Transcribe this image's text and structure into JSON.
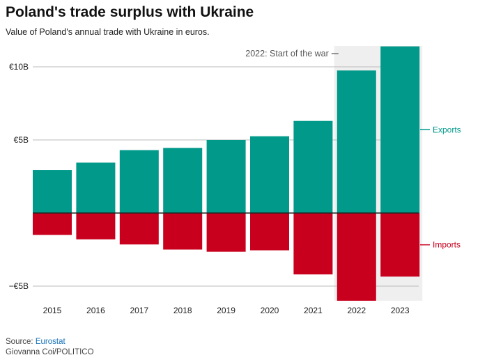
{
  "title": "Poland's trade surplus with Ukraine",
  "subtitle": "Value of Poland's annual trade with Ukraine in euros.",
  "footer": {
    "source_prefix": "Source: ",
    "source_name": "Eurostat",
    "credit": "Giovanna Coi/POLITICO"
  },
  "colors": {
    "exports": "#00998a",
    "imports": "#c8001e",
    "war_shade": "#efefef",
    "gridline": "#bbbbbb",
    "zero_line": "#222222",
    "source_link": "#1a73b8"
  },
  "chart_data": {
    "type": "bar",
    "title": "Poland's trade surplus with Ukraine",
    "subtitle": "Value of Poland's annual trade with Ukraine in euros.",
    "xlabel": "",
    "ylabel": "",
    "categories": [
      "2015",
      "2016",
      "2017",
      "2018",
      "2019",
      "2020",
      "2021",
      "2022",
      "2023"
    ],
    "series": [
      {
        "name": "Exports",
        "values": [
          2.95,
          3.45,
          4.3,
          4.45,
          5.0,
          5.25,
          6.3,
          9.75,
          11.4
        ]
      },
      {
        "name": "Imports",
        "values": [
          -1.5,
          -1.8,
          -2.15,
          -2.5,
          -2.65,
          -2.55,
          -4.2,
          -6.0,
          -4.35
        ]
      }
    ],
    "ylim": [
      -5.6,
      11.4
    ],
    "yticks": [
      {
        "value": 10,
        "label": "€10B"
      },
      {
        "value": 5,
        "label": "€5B"
      },
      {
        "value": -5,
        "label": "−€5B"
      }
    ],
    "grid": true,
    "annotations": [
      {
        "text": "2022: Start of the war",
        "shaded_categories": [
          "2022",
          "2023"
        ]
      }
    ],
    "legend": "inline-right"
  }
}
